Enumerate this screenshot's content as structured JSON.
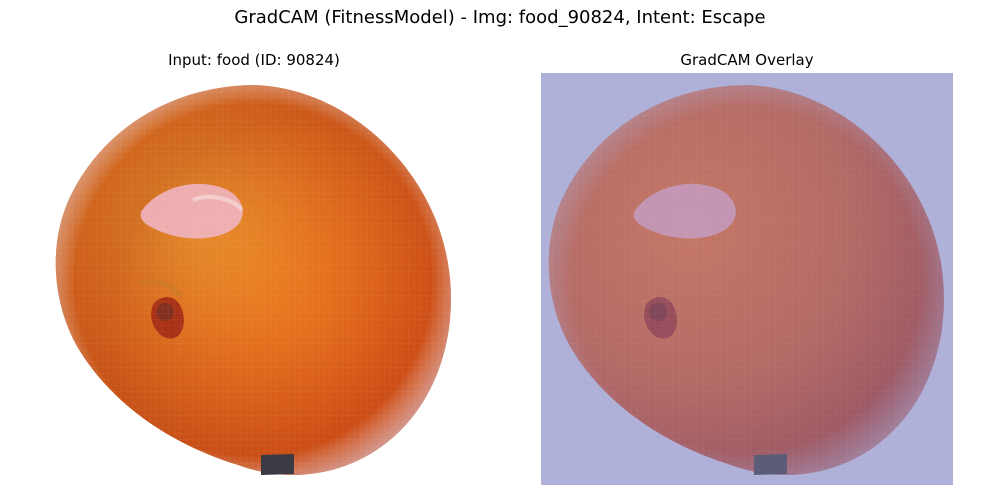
{
  "figure": {
    "title": "GradCAM (FitnessModel) - Img: food_90824, Intent: Escape"
  },
  "panels": {
    "input": {
      "title": "Input: food (ID: 90824)"
    },
    "overlay": {
      "title": "GradCAM Overlay"
    }
  },
  "colors": {
    "background": "#ffffff",
    "orange_light": "#f29a2e",
    "orange_dark": "#c94513",
    "overlay_tint": "#aeb0d8",
    "overlay_fruit": "#a76062",
    "highlight": "#f1b6c8",
    "stem_dark": "#5e3b31"
  }
}
